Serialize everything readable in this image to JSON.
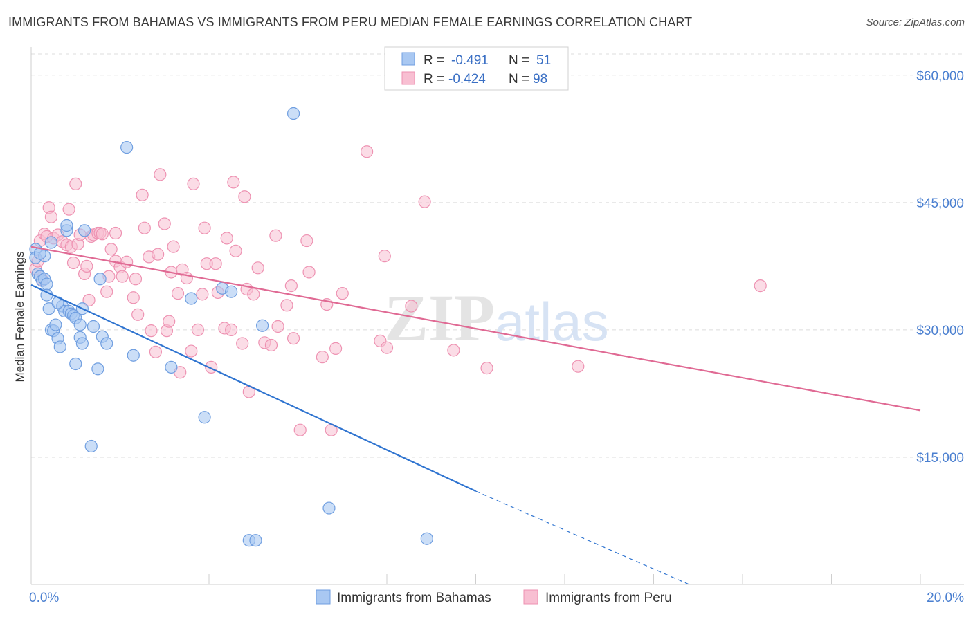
{
  "title": "IMMIGRANTS FROM BAHAMAS VS IMMIGRANTS FROM PERU MEDIAN FEMALE EARNINGS CORRELATION CHART",
  "source": "Source: ZipAtlas.com",
  "watermark": {
    "zip": "ZIP",
    "atlas": "atlas"
  },
  "colors": {
    "bahamas_fill": "#a9c8f2",
    "bahamas_stroke": "#6f9ee0",
    "bahamas_line": "#2f74d0",
    "peru_fill": "#f8bfd2",
    "peru_stroke": "#ee92b2",
    "peru_line": "#e06a94",
    "grid": "#dcdcdc",
    "axis_text": "#4a7fd0"
  },
  "legend": {
    "r_label": "R =",
    "n_label": "N =",
    "bahamas": {
      "r": "-0.491",
      "n": "51"
    },
    "peru": {
      "r": "-0.424",
      "n": "98"
    }
  },
  "chart_data": {
    "type": "scatter",
    "title": "IMMIGRANTS FROM BAHAMAS VS IMMIGRANTS FROM PERU MEDIAN FEMALE EARNINGS CORRELATION CHART",
    "xlabel": "",
    "ylabel": "Median Female Earnings",
    "xlim": [
      0,
      20
    ],
    "ylim": [
      0,
      63000
    ],
    "x_tick_labels": [
      "0.0%",
      "20.0%"
    ],
    "y_ticks": [
      15000,
      30000,
      45000,
      60000
    ],
    "y_tick_labels": [
      "$15,000",
      "$30,000",
      "$45,000",
      "$60,000"
    ],
    "grid": true,
    "legend_position": "top-center",
    "series": [
      {
        "name": "Immigrants from Bahamas",
        "points": [
          [
            0.1,
            39500
          ],
          [
            0.1,
            38500
          ],
          [
            0.15,
            36600
          ],
          [
            0.2,
            36300
          ],
          [
            0.25,
            35800
          ],
          [
            0.3,
            36000
          ],
          [
            0.3,
            38700
          ],
          [
            0.35,
            35400
          ],
          [
            0.35,
            34100
          ],
          [
            0.4,
            32500
          ],
          [
            0.45,
            40300
          ],
          [
            0.45,
            30000
          ],
          [
            0.5,
            29900
          ],
          [
            0.55,
            30600
          ],
          [
            0.6,
            29000
          ],
          [
            0.65,
            28000
          ],
          [
            0.7,
            32800
          ],
          [
            0.75,
            32200
          ],
          [
            0.8,
            41700
          ],
          [
            0.8,
            42300
          ],
          [
            0.85,
            32200
          ],
          [
            0.9,
            31900
          ],
          [
            0.95,
            31700
          ],
          [
            1.0,
            31400
          ],
          [
            1.0,
            26000
          ],
          [
            1.1,
            30600
          ],
          [
            1.1,
            29100
          ],
          [
            1.15,
            28400
          ],
          [
            1.15,
            32500
          ],
          [
            1.2,
            41700
          ],
          [
            1.35,
            16300
          ],
          [
            1.4,
            30400
          ],
          [
            1.5,
            25400
          ],
          [
            1.55,
            36000
          ],
          [
            1.6,
            29200
          ],
          [
            1.7,
            28400
          ],
          [
            2.15,
            51500
          ],
          [
            2.3,
            27000
          ],
          [
            3.15,
            25600
          ],
          [
            3.6,
            33700
          ],
          [
            3.9,
            19700
          ],
          [
            4.3,
            34900
          ],
          [
            4.5,
            34500
          ],
          [
            4.9,
            5200
          ],
          [
            5.05,
            5200
          ],
          [
            5.2,
            30500
          ],
          [
            5.9,
            55500
          ],
          [
            6.7,
            9000
          ],
          [
            8.9,
            5400
          ],
          [
            0.2,
            39000
          ],
          [
            0.6,
            33200
          ]
        ],
        "trendline": {
          "x": [
            0,
            10
          ],
          "y": [
            35300,
            11000
          ],
          "dashed_extension_x": [
            10,
            14.8
          ],
          "dashed_extension_y": [
            11000,
            0
          ]
        }
      },
      {
        "name": "Immigrants from Peru",
        "points": [
          [
            0.1,
            37200
          ],
          [
            0.15,
            38100
          ],
          [
            0.2,
            40500
          ],
          [
            0.3,
            41300
          ],
          [
            0.35,
            41000
          ],
          [
            0.4,
            44400
          ],
          [
            0.45,
            43300
          ],
          [
            0.5,
            40800
          ],
          [
            0.6,
            41200
          ],
          [
            0.7,
            40400
          ],
          [
            0.8,
            40000
          ],
          [
            0.85,
            44200
          ],
          [
            0.9,
            39800
          ],
          [
            0.95,
            37900
          ],
          [
            1.0,
            47200
          ],
          [
            1.05,
            40100
          ],
          [
            1.1,
            41200
          ],
          [
            1.2,
            36600
          ],
          [
            1.25,
            37500
          ],
          [
            1.35,
            41000
          ],
          [
            1.4,
            41200
          ],
          [
            1.5,
            41400
          ],
          [
            1.55,
            41400
          ],
          [
            1.6,
            41300
          ],
          [
            1.7,
            34500
          ],
          [
            1.75,
            36300
          ],
          [
            1.8,
            39500
          ],
          [
            1.9,
            41400
          ],
          [
            1.9,
            38100
          ],
          [
            2.0,
            37400
          ],
          [
            2.05,
            36300
          ],
          [
            2.15,
            38000
          ],
          [
            2.3,
            33800
          ],
          [
            2.35,
            36000
          ],
          [
            2.4,
            31800
          ],
          [
            2.5,
            45900
          ],
          [
            2.55,
            42000
          ],
          [
            2.65,
            38600
          ],
          [
            2.7,
            29900
          ],
          [
            2.8,
            27400
          ],
          [
            2.85,
            38900
          ],
          [
            2.9,
            48300
          ],
          [
            3.0,
            42500
          ],
          [
            3.05,
            29900
          ],
          [
            3.1,
            31000
          ],
          [
            3.15,
            36800
          ],
          [
            3.2,
            39800
          ],
          [
            3.3,
            34300
          ],
          [
            3.35,
            25000
          ],
          [
            3.4,
            37100
          ],
          [
            3.5,
            36100
          ],
          [
            3.6,
            27500
          ],
          [
            3.65,
            47200
          ],
          [
            3.75,
            30000
          ],
          [
            3.85,
            34200
          ],
          [
            3.9,
            42000
          ],
          [
            3.95,
            37800
          ],
          [
            4.05,
            25600
          ],
          [
            4.15,
            37800
          ],
          [
            4.2,
            34400
          ],
          [
            4.35,
            30200
          ],
          [
            4.4,
            40800
          ],
          [
            4.5,
            30000
          ],
          [
            4.55,
            47400
          ],
          [
            4.6,
            39300
          ],
          [
            4.75,
            28400
          ],
          [
            4.8,
            45700
          ],
          [
            4.85,
            34800
          ],
          [
            4.9,
            22700
          ],
          [
            5.0,
            34200
          ],
          [
            5.1,
            37300
          ],
          [
            5.25,
            28500
          ],
          [
            5.4,
            28200
          ],
          [
            5.5,
            41100
          ],
          [
            5.55,
            30400
          ],
          [
            5.75,
            32900
          ],
          [
            5.85,
            35200
          ],
          [
            5.9,
            29000
          ],
          [
            6.05,
            18200
          ],
          [
            6.2,
            40500
          ],
          [
            6.25,
            36800
          ],
          [
            6.55,
            26800
          ],
          [
            6.65,
            33000
          ],
          [
            6.75,
            18200
          ],
          [
            6.85,
            27800
          ],
          [
            7.0,
            34300
          ],
          [
            7.55,
            51000
          ],
          [
            7.85,
            28700
          ],
          [
            7.95,
            38700
          ],
          [
            8.0,
            27900
          ],
          [
            8.55,
            32800
          ],
          [
            8.85,
            45100
          ],
          [
            9.5,
            27600
          ],
          [
            10.25,
            25500
          ],
          [
            12.3,
            25700
          ],
          [
            16.4,
            35200
          ],
          [
            0.25,
            35900
          ],
          [
            1.3,
            33500
          ]
        ],
        "trendline": {
          "x": [
            0,
            20
          ],
          "y": [
            39800,
            20500
          ]
        }
      }
    ]
  },
  "bottom_legend": [
    "Immigrants from Bahamas",
    "Immigrants from Peru"
  ]
}
